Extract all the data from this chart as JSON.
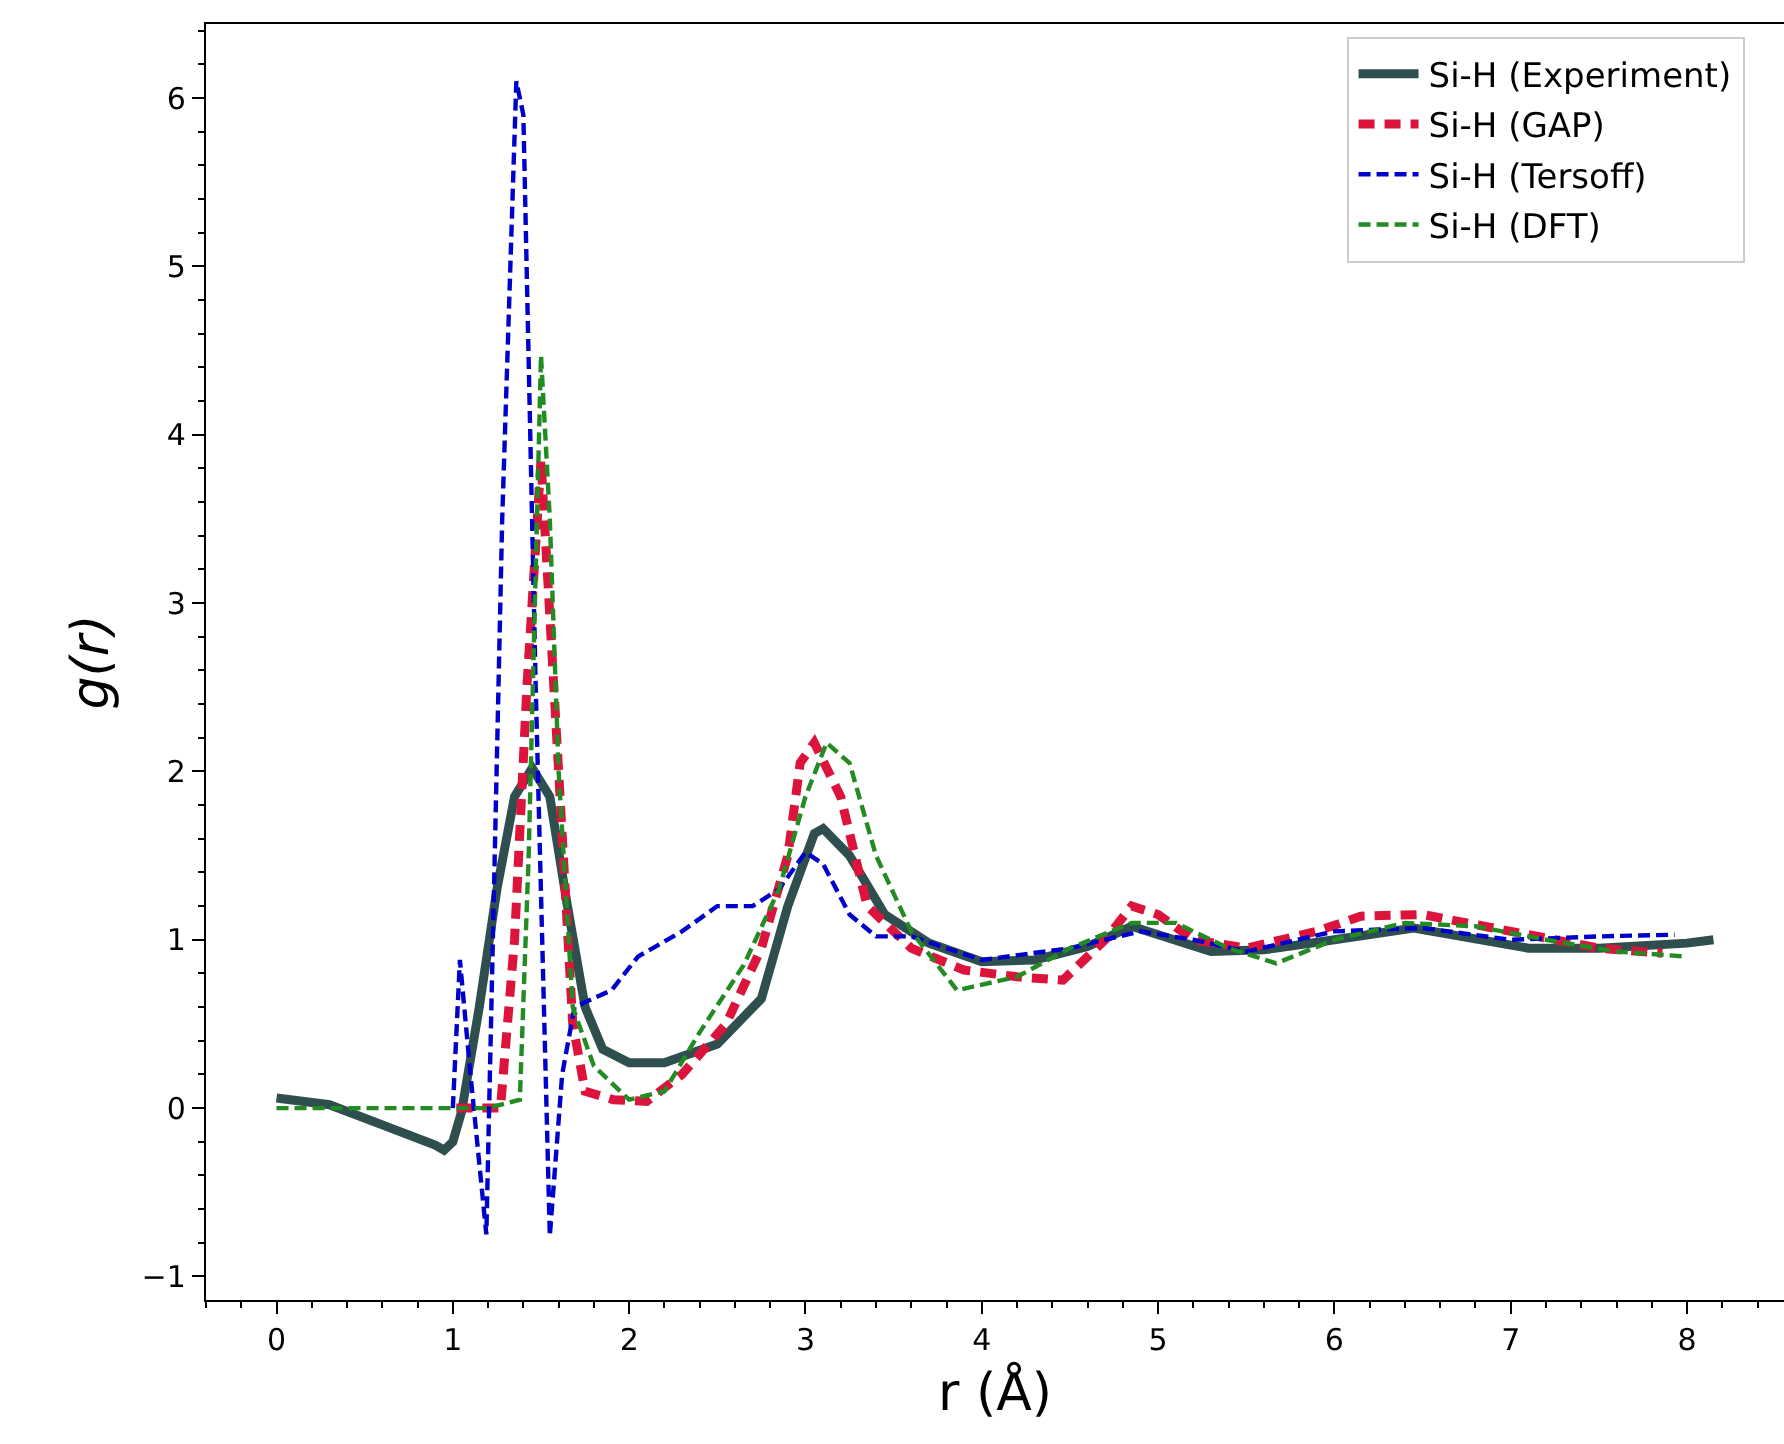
{
  "chart_data": {
    "type": "line",
    "xlabel": "r (Å)",
    "ylabel": "g(r)",
    "xlim": [
      -0.4,
      8.55
    ],
    "ylim": [
      -1.14,
      6.44
    ],
    "xticks": [
      0,
      1,
      2,
      3,
      4,
      5,
      6,
      7,
      8
    ],
    "yticks": [
      {
        "value": -1,
        "label": "−1"
      },
      0,
      1,
      2,
      3,
      4,
      5,
      6
    ],
    "legend": "top right",
    "marker": "none",
    "series": [
      {
        "name": "Si-H (Experiment)",
        "color": "#2f4f4f",
        "line_style": "solid",
        "x": [
          0,
          0.3,
          0.6,
          0.9,
          0.95,
          1.0,
          1.05,
          1.15,
          1.25,
          1.35,
          1.45,
          1.55,
          1.65,
          1.75,
          1.85,
          2.0,
          2.2,
          2.5,
          2.75,
          2.9,
          3.05,
          3.1,
          3.25,
          3.45,
          3.7,
          4.0,
          4.3,
          4.6,
          4.85,
          5.3,
          5.6,
          6.0,
          6.45,
          7.1,
          7.5,
          8.0,
          8.15
        ],
        "values": [
          0.06,
          0.02,
          -0.1,
          -0.22,
          -0.25,
          -0.2,
          -0.02,
          0.6,
          1.3,
          1.85,
          2.02,
          1.85,
          1.2,
          0.6,
          0.35,
          0.27,
          0.27,
          0.38,
          0.65,
          1.2,
          1.63,
          1.66,
          1.5,
          1.15,
          0.98,
          0.87,
          0.88,
          0.96,
          1.08,
          0.93,
          0.94,
          1.0,
          1.07,
          0.95,
          0.95,
          0.98,
          1.0
        ]
      },
      {
        "name": "Si-H (GAP)",
        "color": "#dc143c",
        "line_style": "dashed",
        "x": [
          1.02,
          1.27,
          1.35,
          1.42,
          1.5,
          1.6,
          1.68,
          1.75,
          1.91,
          2.1,
          2.3,
          2.55,
          2.75,
          2.9,
          2.97,
          3.05,
          3.2,
          3.35,
          3.6,
          3.9,
          4.2,
          4.46,
          4.7,
          4.85,
          5.0,
          5.2,
          5.5,
          5.9,
          6.15,
          6.5,
          7.0,
          7.5,
          7.86
        ],
        "values": [
          0,
          0,
          1.0,
          2.5,
          3.85,
          2.0,
          0.5,
          0.1,
          0.05,
          0.04,
          0.2,
          0.5,
          0.95,
          1.5,
          2.05,
          2.17,
          1.85,
          1.2,
          0.95,
          0.82,
          0.78,
          0.76,
          1.0,
          1.2,
          1.15,
          1.0,
          0.95,
          1.05,
          1.14,
          1.15,
          1.05,
          0.95,
          0.92
        ]
      },
      {
        "name": "Si-H (Tersoff)",
        "color": "#0000cd",
        "line_style": "dashed",
        "x": [
          1.0,
          1.04,
          1.1,
          1.19,
          1.28,
          1.36,
          1.4,
          1.47,
          1.55,
          1.62,
          1.69,
          1.9,
          2.05,
          2.3,
          2.5,
          2.7,
          2.85,
          3.0,
          3.1,
          3.25,
          3.4,
          3.6,
          4.0,
          4.5,
          4.9,
          5.2,
          5.5,
          6.0,
          6.5,
          7.0,
          7.5,
          7.93
        ],
        "values": [
          0,
          0.88,
          0.2,
          -0.75,
          3.5,
          6.1,
          5.9,
          2.5,
          -0.76,
          0.2,
          0.6,
          0.7,
          0.9,
          1.05,
          1.2,
          1.2,
          1.3,
          1.52,
          1.45,
          1.15,
          1.02,
          1.02,
          0.88,
          0.95,
          1.05,
          1.0,
          0.93,
          1.05,
          1.07,
          1.0,
          1.02,
          1.03
        ]
      },
      {
        "name": "Si-H (DFT)",
        "color": "#228b22",
        "line_style": "dashed",
        "x": [
          0,
          1.2,
          1.38,
          1.43,
          1.5,
          1.55,
          1.6,
          1.68,
          1.8,
          2.0,
          2.2,
          2.4,
          2.65,
          2.85,
          3.0,
          3.12,
          3.25,
          3.4,
          3.6,
          3.86,
          4.2,
          4.5,
          4.85,
          5.1,
          5.4,
          5.67,
          6.0,
          6.4,
          6.8,
          7.2,
          7.6,
          8.0
        ],
        "values": [
          0,
          0,
          0.05,
          1.5,
          4.47,
          3.5,
          2.0,
          0.6,
          0.25,
          0.05,
          0.1,
          0.45,
          0.85,
          1.3,
          1.85,
          2.17,
          2.05,
          1.5,
          1.05,
          0.7,
          0.78,
          0.95,
          1.1,
          1.1,
          0.95,
          0.86,
          1.0,
          1.1,
          1.08,
          1.0,
          0.93,
          0.9
        ]
      }
    ]
  }
}
